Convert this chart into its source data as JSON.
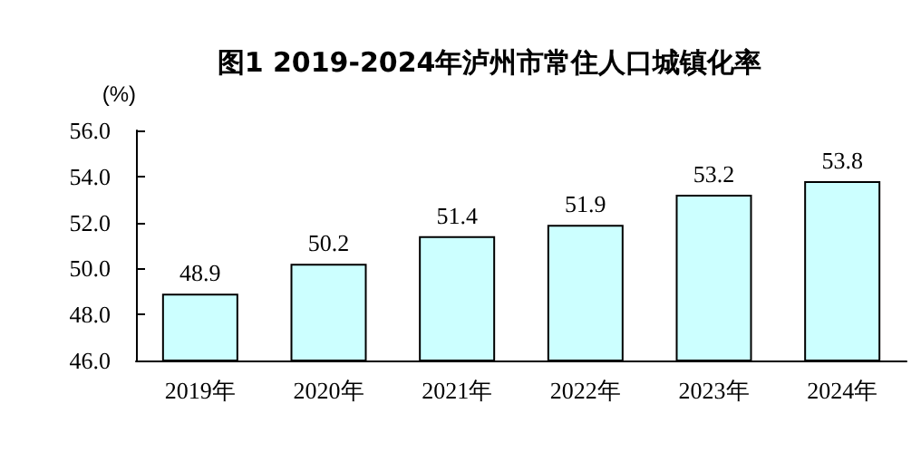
{
  "chart_data": {
    "type": "bar",
    "title": "图1 2019-2024年泸州市常住人口城镇化率",
    "ylabel": "(%)",
    "categories": [
      "2019年",
      "2020年",
      "2021年",
      "2022年",
      "2023年",
      "2024年"
    ],
    "values": [
      48.9,
      50.2,
      51.4,
      51.9,
      53.2,
      53.8
    ],
    "color": "#ccffff",
    "ylim": [
      46,
      56
    ],
    "yticks": [
      {
        "value": 46,
        "label": "46.0"
      },
      {
        "value": 48,
        "label": "48.0"
      },
      {
        "value": 50,
        "label": "50.0"
      },
      {
        "value": 52,
        "label": "52.0"
      },
      {
        "value": 54,
        "label": "54.0"
      },
      {
        "value": 56,
        "label": "56.0"
      }
    ],
    "data_labels": true
  }
}
